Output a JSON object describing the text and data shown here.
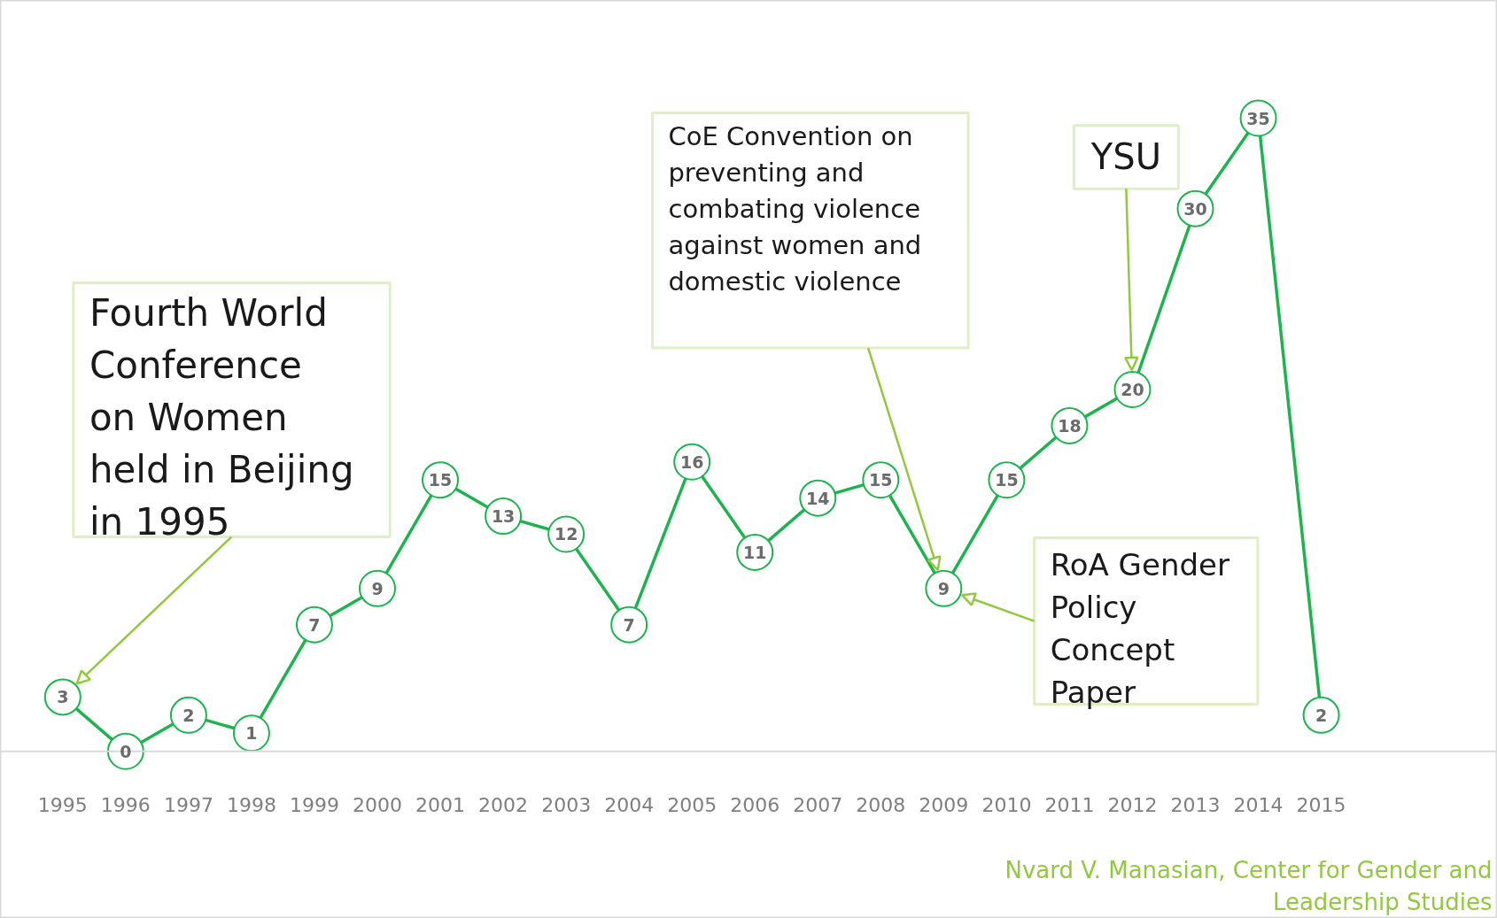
{
  "chart_data": {
    "type": "line",
    "categories": [
      "1995",
      "1996",
      "1997",
      "1998",
      "1999",
      "2000",
      "2001",
      "2002",
      "2003",
      "2004",
      "2005",
      "2006",
      "2007",
      "2008",
      "2009",
      "2010",
      "2011",
      "2012",
      "2013",
      "2014",
      "2015"
    ],
    "values": [
      3,
      0,
      2,
      1,
      7,
      9,
      15,
      13,
      12,
      7,
      16,
      11,
      14,
      15,
      9,
      15,
      18,
      20,
      30,
      35,
      2
    ],
    "color": "#1db34f",
    "marker": "circle",
    "data_labels": true,
    "grid": false,
    "annotations": [
      "Fourth World\nConference\non Women\nheld in Beijing\nin 1995",
      "CoE Convention on\npreventing and\ncombating violence\nagainst women and\ndomestic violence",
      "YSU",
      "RoA Gender\nPolicy\nConcept\nPaper",
      "Nvard V. Manasian, Center for Gender and\nLeadership Studies"
    ]
  }
}
